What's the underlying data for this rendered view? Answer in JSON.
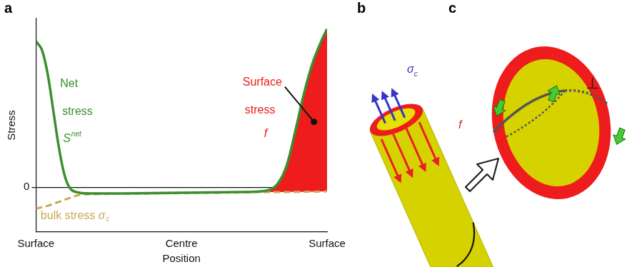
{
  "panels": [
    "a",
    "b",
    "c"
  ],
  "chart_data": {
    "type": "line",
    "xlabel": "Position",
    "ylabel": "Stress",
    "x": [
      0,
      0.02,
      0.04,
      0.06,
      0.08,
      0.1,
      0.12,
      0.15,
      0.2,
      0.3,
      0.4,
      0.5,
      0.6,
      0.7,
      0.75,
      0.8,
      0.83,
      0.86,
      0.89,
      0.92,
      0.95,
      0.98,
      1.0
    ],
    "series": [
      {
        "name": "bulk stress",
        "symbol": {
          "main": "σ",
          "sub": "c"
        },
        "color": "#c9aa55",
        "line_style": "dashed",
        "values": [
          -0.31,
          -0.29,
          -0.27,
          -0.24,
          -0.21,
          -0.18,
          -0.15,
          -0.11,
          -0.1,
          -0.095,
          -0.09,
          -0.085,
          -0.08,
          -0.075,
          -0.07,
          -0.07,
          -0.07,
          -0.07,
          -0.068,
          -0.066,
          -0.064,
          -0.062,
          -0.06
        ]
      },
      {
        "name": "Surface stress",
        "symbol": {
          "main": "f"
        },
        "color": "#ee1c1c",
        "type": "area",
        "values": [
          null,
          null,
          null,
          null,
          null,
          null,
          null,
          null,
          null,
          null,
          null,
          null,
          null,
          null,
          null,
          0.03,
          0.12,
          0.37,
          0.868,
          1.416,
          1.864,
          2.182,
          2.36
        ]
      },
      {
        "name": "Net stress",
        "symbol": {
          "main": "S",
          "sup": "net"
        },
        "color": "#3b8f2e",
        "line_style": "solid",
        "values": [
          2.12,
          2.0,
          1.65,
          1.1,
          0.55,
          0.15,
          -0.03,
          -0.08,
          -0.09,
          -0.09,
          -0.085,
          -0.08,
          -0.075,
          -0.07,
          -0.065,
          -0.04,
          0.05,
          0.3,
          0.8,
          1.35,
          1.8,
          2.12,
          2.3
        ]
      }
    ],
    "xlim": [
      0,
      1
    ],
    "xticks": [
      {
        "value": 0,
        "label": "Surface"
      },
      {
        "value": 0.5,
        "label": "Centre"
      },
      {
        "value": 1,
        "label": "Surface"
      }
    ],
    "ylim": [
      -0.65,
      2.45
    ],
    "yticks": [
      0
    ],
    "grid": true
  },
  "diagram": {
    "b": {
      "labels": [
        {
          "main": "σ",
          "sub": "c",
          "color": "#3535c8"
        },
        {
          "main": "f",
          "color": "#e8202a"
        }
      ]
    },
    "c": {
      "labels": [
        {
          "main": "⊥",
          "color": "#222222"
        }
      ]
    }
  }
}
